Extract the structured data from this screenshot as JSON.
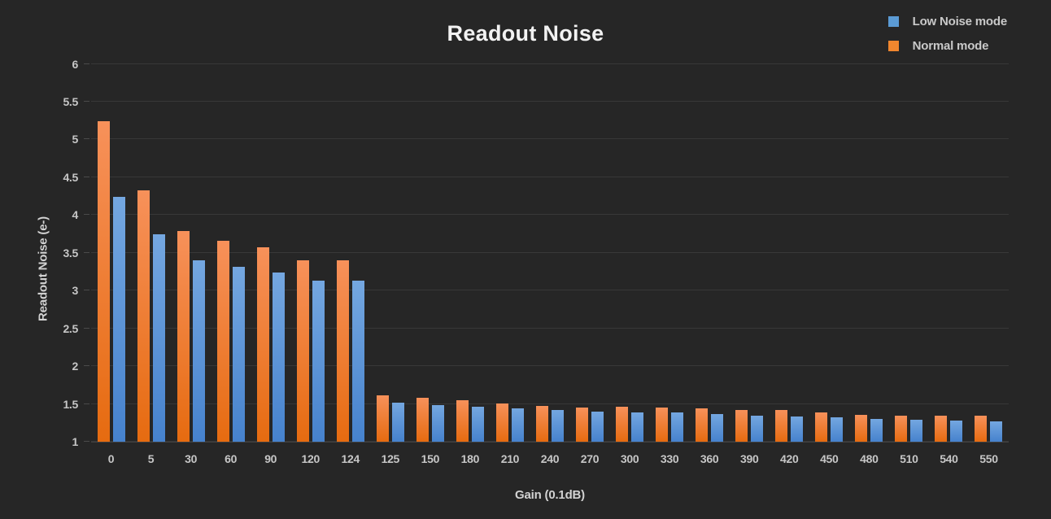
{
  "legend": [
    {
      "label": "Low Noise mode",
      "color": "#5b9bd5"
    },
    {
      "label": "Normal mode",
      "color": "#f0862e"
    }
  ],
  "chart_data": {
    "type": "bar",
    "title": "Readout Noise",
    "xlabel": "Gain (0.1dB)",
    "ylabel": "Readout Noise (e-)",
    "ylim": [
      1,
      6.2
    ],
    "yticks": [
      1,
      1.5,
      2,
      2.5,
      3,
      3.5,
      4,
      4.5,
      5,
      5.5,
      6
    ],
    "grid": true,
    "legend_position": "top-right",
    "background_color": "#262626",
    "categories": [
      "0",
      "5",
      "30",
      "60",
      "90",
      "120",
      "124",
      "125",
      "150",
      "180",
      "210",
      "240",
      "270",
      "300",
      "330",
      "360",
      "390",
      "420",
      "450",
      "480",
      "510",
      "540",
      "550"
    ],
    "series": [
      {
        "name": "Normal mode",
        "color": "#f0862e",
        "gradient": [
          "#f7915a",
          "#e66b10"
        ],
        "values": [
          5.24,
          4.33,
          3.79,
          3.66,
          3.57,
          3.4,
          3.4,
          1.61,
          1.58,
          1.55,
          1.51,
          1.47,
          1.45,
          1.46,
          1.45,
          1.44,
          1.42,
          1.42,
          1.39,
          1.36,
          1.35,
          1.34,
          1.34
        ]
      },
      {
        "name": "Low Noise mode",
        "color": "#5b9bd5",
        "gradient": [
          "#74a7e0",
          "#4682cd"
        ],
        "values": [
          4.24,
          3.75,
          3.4,
          3.31,
          3.24,
          3.13,
          3.13,
          1.52,
          1.48,
          1.46,
          1.44,
          1.42,
          1.4,
          1.39,
          1.39,
          1.37,
          1.35,
          1.33,
          1.32,
          1.3,
          1.29,
          1.28,
          1.27
        ]
      }
    ]
  }
}
